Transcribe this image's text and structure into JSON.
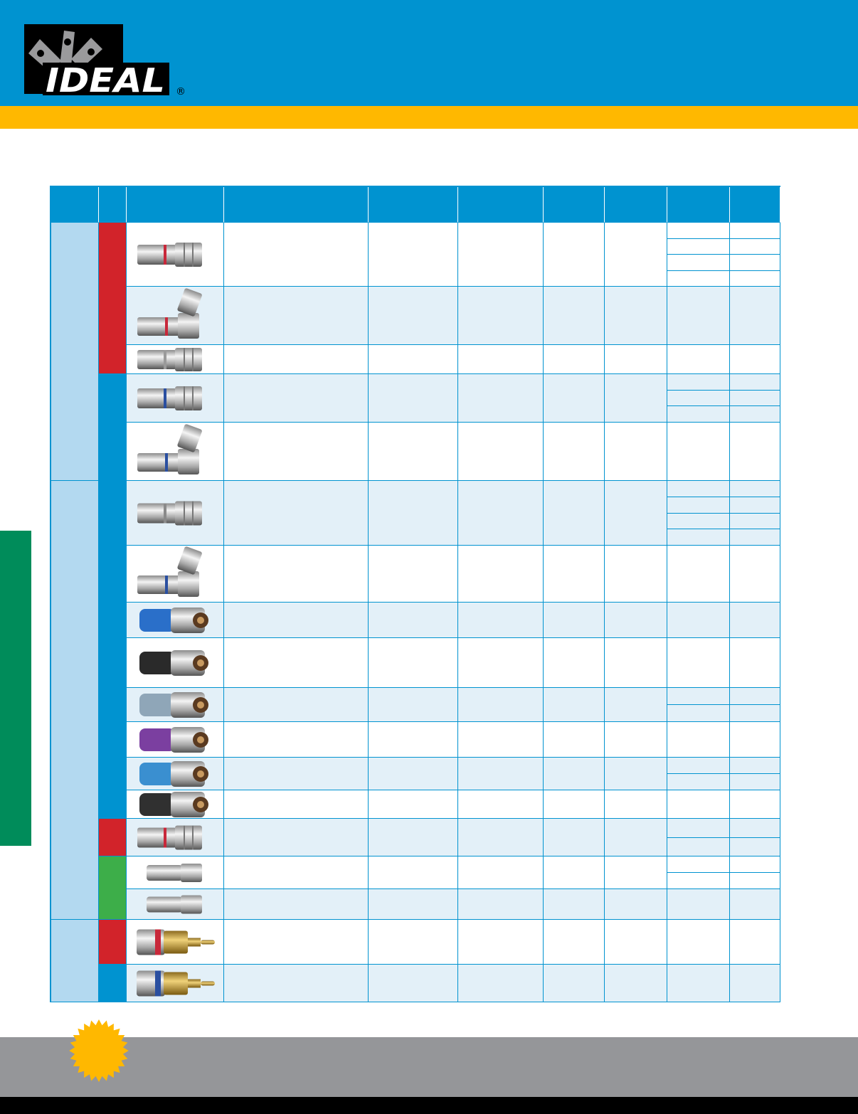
{
  "brand": {
    "logo_text": "IDEAL",
    "registered_mark": "®"
  },
  "colors": {
    "header_blue": "#0093d0",
    "accent_gold": "#ffb800",
    "side_tab_green": "#008c5a",
    "group_light_blue": "#b3d9f0",
    "row_shade": "#e3f0f8",
    "footer_gray": "#959699",
    "red": "#d2232a",
    "blue": "#0093d0",
    "green": "#3dae49"
  },
  "table": {
    "columns": 10,
    "groups": [
      {
        "rows": [
          0,
          4
        ]
      },
      {
        "rows": [
          5,
          15
        ]
      },
      {
        "rows": [
          16,
          17
        ]
      }
    ],
    "color_bands": [
      {
        "color": "red",
        "rows": [
          0,
          2
        ]
      },
      {
        "color": "blue",
        "rows": [
          3,
          12
        ]
      },
      {
        "color": "red",
        "rows": [
          13,
          13
        ]
      },
      {
        "color": "green",
        "rows": [
          14,
          15
        ]
      },
      {
        "color": "red",
        "rows": [
          16,
          16
        ]
      },
      {
        "color": "blue",
        "rows": [
          17,
          17
        ]
      }
    ],
    "rows": [
      {
        "image": "bnc-straight-connector-icon",
        "style": "bnc",
        "band": "#c8283a",
        "sleeve": "",
        "subrows": 4
      },
      {
        "image": "bnc-right-angle-connector-icon",
        "style": "bnc-ra",
        "band": "#c8283a",
        "sleeve": "",
        "subrows": 1
      },
      {
        "image": "bnc-straight-connector-icon",
        "style": "bnc",
        "band": "#9a9a9a",
        "sleeve": "",
        "subrows": 1
      },
      {
        "image": "bnc-straight-connector-icon",
        "style": "bnc",
        "band": "#2a4fa0",
        "sleeve": "",
        "subrows": 3
      },
      {
        "image": "bnc-right-angle-connector-icon",
        "style": "bnc-ra",
        "band": "#2a4fa0",
        "sleeve": "",
        "subrows": 1
      },
      {
        "image": "f-connector-icon",
        "style": "f",
        "band": "#8a8a8a",
        "sleeve": "",
        "subrows": 4
      },
      {
        "image": "f-right-angle-connector-icon",
        "style": "f-ra",
        "band": "#2a4fa0",
        "sleeve": "",
        "subrows": 1
      },
      {
        "image": "f-compression-connector-icon",
        "style": "comp",
        "band": "",
        "sleeve": "#2a6fc9",
        "subrows": 1
      },
      {
        "image": "f-compression-connector-icon",
        "style": "comp",
        "band": "",
        "sleeve": "#2a2a2a",
        "subrows": 1
      },
      {
        "image": "f-compression-connector-icon",
        "style": "comp",
        "band": "",
        "sleeve": "#8fa6b8",
        "subrows": 2
      },
      {
        "image": "f-compression-connector-icon",
        "style": "comp",
        "band": "",
        "sleeve": "#7b3fa0",
        "subrows": 1
      },
      {
        "image": "f-compression-connector-icon",
        "style": "comp",
        "band": "",
        "sleeve": "#3a8fd0",
        "subrows": 2
      },
      {
        "image": "f-compression-connector-icon",
        "style": "comp",
        "band": "",
        "sleeve": "#303030",
        "subrows": 1
      },
      {
        "image": "f-connector-icon",
        "style": "f",
        "band": "#c8283a",
        "sleeve": "",
        "subrows": 2
      },
      {
        "image": "mini-f-connector-icon",
        "style": "mini",
        "band": "",
        "sleeve": "",
        "subrows": 2
      },
      {
        "image": "mini-f-connector-icon",
        "style": "mini",
        "band": "",
        "sleeve": "",
        "subrows": 1
      },
      {
        "image": "rca-connector-icon",
        "style": "rca",
        "band": "#c8283a",
        "sleeve": "",
        "subrows": 1
      },
      {
        "image": "rca-connector-icon",
        "style": "rca",
        "band": "#2a4fa0",
        "sleeve": "",
        "subrows": 1
      }
    ]
  },
  "footer": {
    "badge_icon": "starburst-icon"
  }
}
